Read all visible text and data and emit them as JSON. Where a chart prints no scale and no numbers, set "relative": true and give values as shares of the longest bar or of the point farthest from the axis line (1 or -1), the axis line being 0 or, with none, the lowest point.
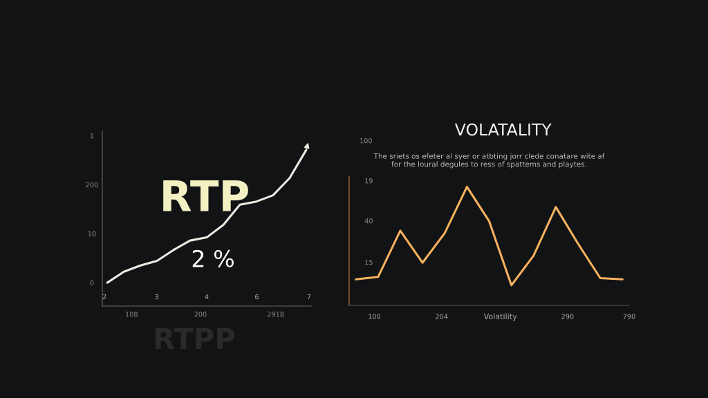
{
  "chart_data": [
    {
      "type": "line",
      "relative": true,
      "categories": [
        null,
        null,
        null,
        null,
        null,
        null,
        null,
        null,
        null,
        null,
        null,
        null,
        null
      ],
      "series": [
        {
          "color": "#ecebe2",
          "values": [
            0.15,
            0.22,
            0.26,
            0.29,
            0.36,
            0.42,
            0.44,
            0.52,
            0.65,
            0.67,
            0.71,
            0.82,
            1
          ]
        }
      ],
      "annotations": [
        "RTP",
        "2 %",
        "RTPP",
        "1",
        "200",
        "10",
        "0",
        "2",
        "3",
        "4",
        "6",
        "7",
        "108",
        "200",
        "2918"
      ]
    },
    {
      "type": "line",
      "relative": true,
      "title": "VOLATALITY",
      "subtitle": "The sriets os efeter al syer or atbting jorr clede conatare wite af\nfor the loural degules to ress of spattems and playtes.",
      "xlabel": "Volatility",
      "categories": [
        null,
        null,
        null,
        null,
        null,
        null,
        null,
        null,
        null,
        null,
        null,
        null,
        null
      ],
      "series": [
        {
          "color": "#f6b25e",
          "values": [
            0.22,
            0.24,
            0.63,
            0.36,
            0.61,
            1,
            0.71,
            0.17,
            0.42,
            0.83,
            0.52,
            0.23,
            0.22
          ]
        }
      ],
      "annotations": [
        "100",
        "19",
        "40",
        "15",
        "100",
        "204",
        "290",
        "790"
      ]
    }
  ]
}
